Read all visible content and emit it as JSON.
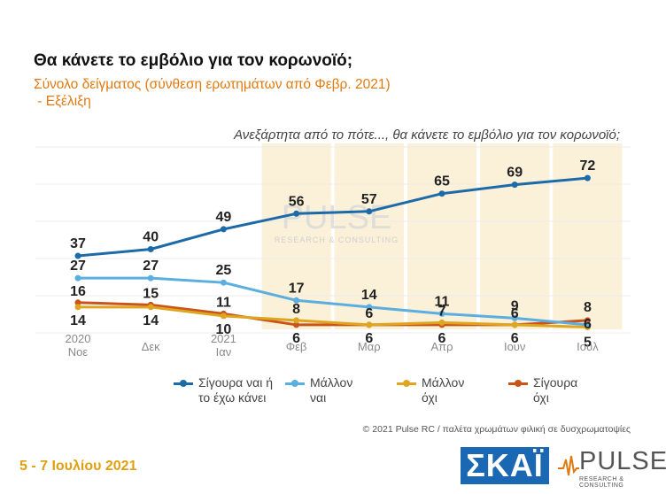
{
  "title": "Θα κάνετε το εμβόλιο για τον κορωνοϊό;",
  "subtitle_line1": "Σύνολο δείγματος (σύνθεση ερωτημάτων από Φεβρ. 2021)",
  "subtitle_line2": " - Εξέλιξη",
  "question": "Ανεξάρτητα από το πότε..., θα κάνετε το εμβόλιο για τον κορωνοϊό;",
  "watermark": {
    "name": "PULSE",
    "tagline": "RESEARCH & CONSULTING"
  },
  "copyright": "© 2021 Pulse RC  /  παλέτα χρωμάτων φιλική σε δυσχρωματοψίες",
  "date": "5 - 7  Ιουλίου  2021",
  "logos": {
    "skai": "ΣΚΑΪ",
    "pulse": "PULSE",
    "pulse_tagline": "RESEARCH & CONSULTING"
  },
  "chart_data": {
    "type": "line",
    "categories": [
      "2020\nΝοε",
      "Δεκ",
      "2021\nΙαν",
      "Φεβ",
      "Μαρ",
      "Απρ",
      "Ιουν",
      "Ιουλ"
    ],
    "ylim": [
      0,
      80
    ],
    "grid": true,
    "highlight_from_category": "Φεβ",
    "legend_position": "bottom",
    "series": [
      {
        "name": "Σίγουρα ναι ή\nτο έχω κάνει",
        "color": "#1d6aa8",
        "values": [
          37,
          40,
          49,
          56,
          57,
          65,
          69,
          72
        ],
        "label_pos": "above"
      },
      {
        "name": "Μάλλον\nναι",
        "color": "#5aaee0",
        "values": [
          27,
          27,
          25,
          17,
          14,
          11,
          9,
          6
        ],
        "label_pos": "above"
      },
      {
        "name": "Μάλλον\nόχι",
        "color": "#e0a520",
        "values": [
          14,
          14,
          10,
          8,
          6,
          7,
          6,
          5
        ],
        "label_pos": "below"
      },
      {
        "name": "Σίγουρα\nόχι",
        "color": "#c8541a",
        "values": [
          16,
          15,
          11,
          6,
          6,
          6,
          6,
          8
        ],
        "label_pos": "mixed"
      }
    ]
  }
}
